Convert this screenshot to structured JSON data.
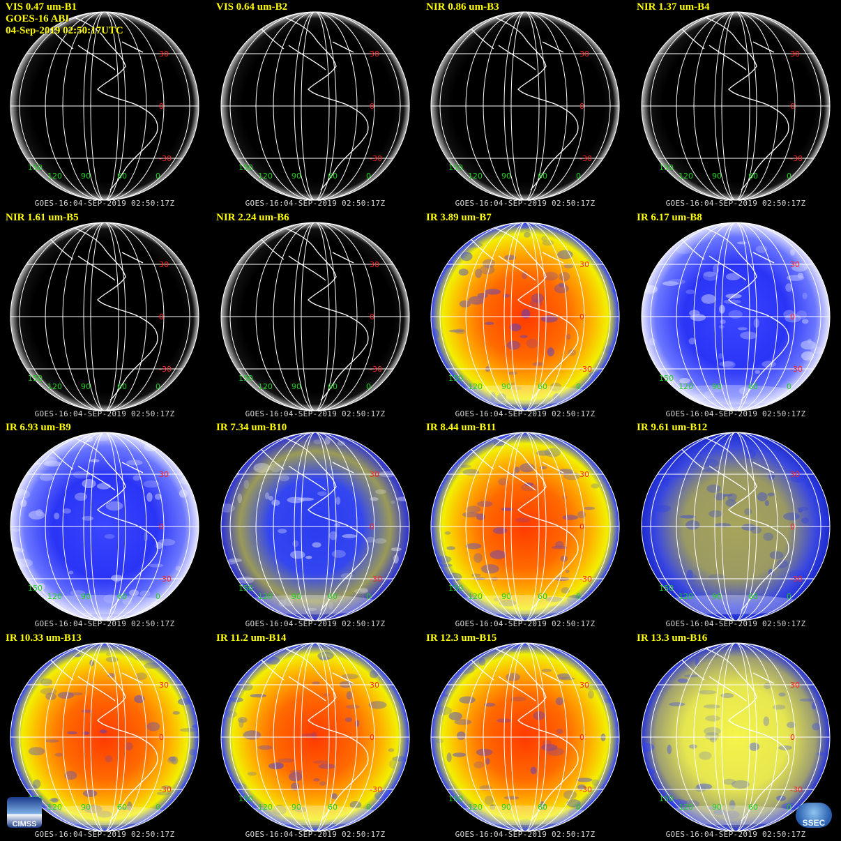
{
  "header": {
    "satellite_line": "GOES-16 ABI",
    "timestamp_line": "04-Sep-2019 02:50:17UTC"
  },
  "footer_text": "GOES-16:04-SEP-2019 02:50:17Z",
  "lat_labels": [
    "30",
    "0",
    "-30"
  ],
  "lon_labels": [
    "150",
    "120",
    "90",
    "60",
    "0"
  ],
  "colors": {
    "title": "#ffff00",
    "lat_label": "#ff2020",
    "lon_label": "#20d020",
    "grid": "#ffffff"
  },
  "logos": {
    "left": "CIMSS",
    "right": "SSEC"
  },
  "panels": [
    {
      "title": "VIS 0.47 um-B1",
      "style": "vis"
    },
    {
      "title": "VIS 0.64 um-B2",
      "style": "vis"
    },
    {
      "title": "NIR 0.86 um-B3",
      "style": "vis"
    },
    {
      "title": "NIR 1.37 um-B4",
      "style": "vis"
    },
    {
      "title": "NIR 1.61 um-B5",
      "style": "vis"
    },
    {
      "title": "NIR 2.24 um-B6",
      "style": "vis"
    },
    {
      "title": "IR 3.89 um-B7",
      "style": "ir-warm"
    },
    {
      "title": "IR 6.17 um-B8",
      "style": "wv-blue"
    },
    {
      "title": "IR 6.93 um-B9",
      "style": "wv-blue"
    },
    {
      "title": "IR 7.34 um-B10",
      "style": "wv-olive"
    },
    {
      "title": "IR 8.44 um-B11",
      "style": "ir-warm"
    },
    {
      "title": "IR 9.61 um-B12",
      "style": "ir-olive"
    },
    {
      "title": "IR 10.33 um-B13",
      "style": "ir-warm"
    },
    {
      "title": "IR 11.2 um-B14",
      "style": "ir-warm"
    },
    {
      "title": "IR 12.3 um-B15",
      "style": "ir-warm"
    },
    {
      "title": "IR 13.3 um-B16",
      "style": "ir-yellow"
    }
  ]
}
